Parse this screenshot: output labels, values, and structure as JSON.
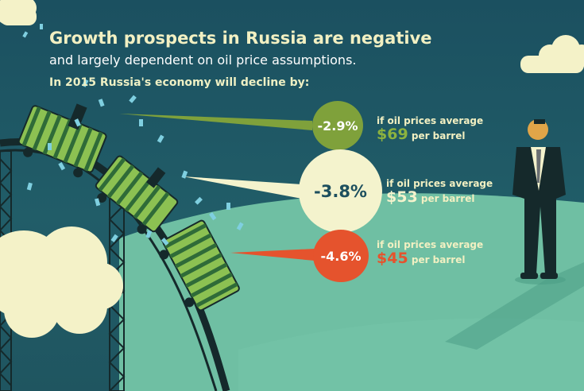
{
  "header": {
    "title": "Growth prospects in Russia are negative",
    "subtitle": "and largely dependent on oil price assumptions.",
    "lead": "In 2015 Russia's economy will decline by:"
  },
  "scenarios": [
    {
      "decline": "-2.9%",
      "condition": "if oil prices average",
      "price": "$69",
      "unit": "per barrel",
      "color": "#7fa13b"
    },
    {
      "decline": "-3.8%",
      "condition": "if oil prices average",
      "price": "$53",
      "unit": "per barrel",
      "color": "#f4f3cd"
    },
    {
      "decline": "-4.6%",
      "condition": "if oil prices average",
      "price": "$45",
      "unit": "per barrel",
      "color": "#e5532d"
    }
  ],
  "illustration": {
    "subject": "roller-coaster-cars-falling-money",
    "observer": "businessman-watching",
    "colors": {
      "background": "#1f5560",
      "hill": "#6fbfa3",
      "cart_stripe": "#8cc152",
      "cloud": "#f4f2c8"
    }
  }
}
